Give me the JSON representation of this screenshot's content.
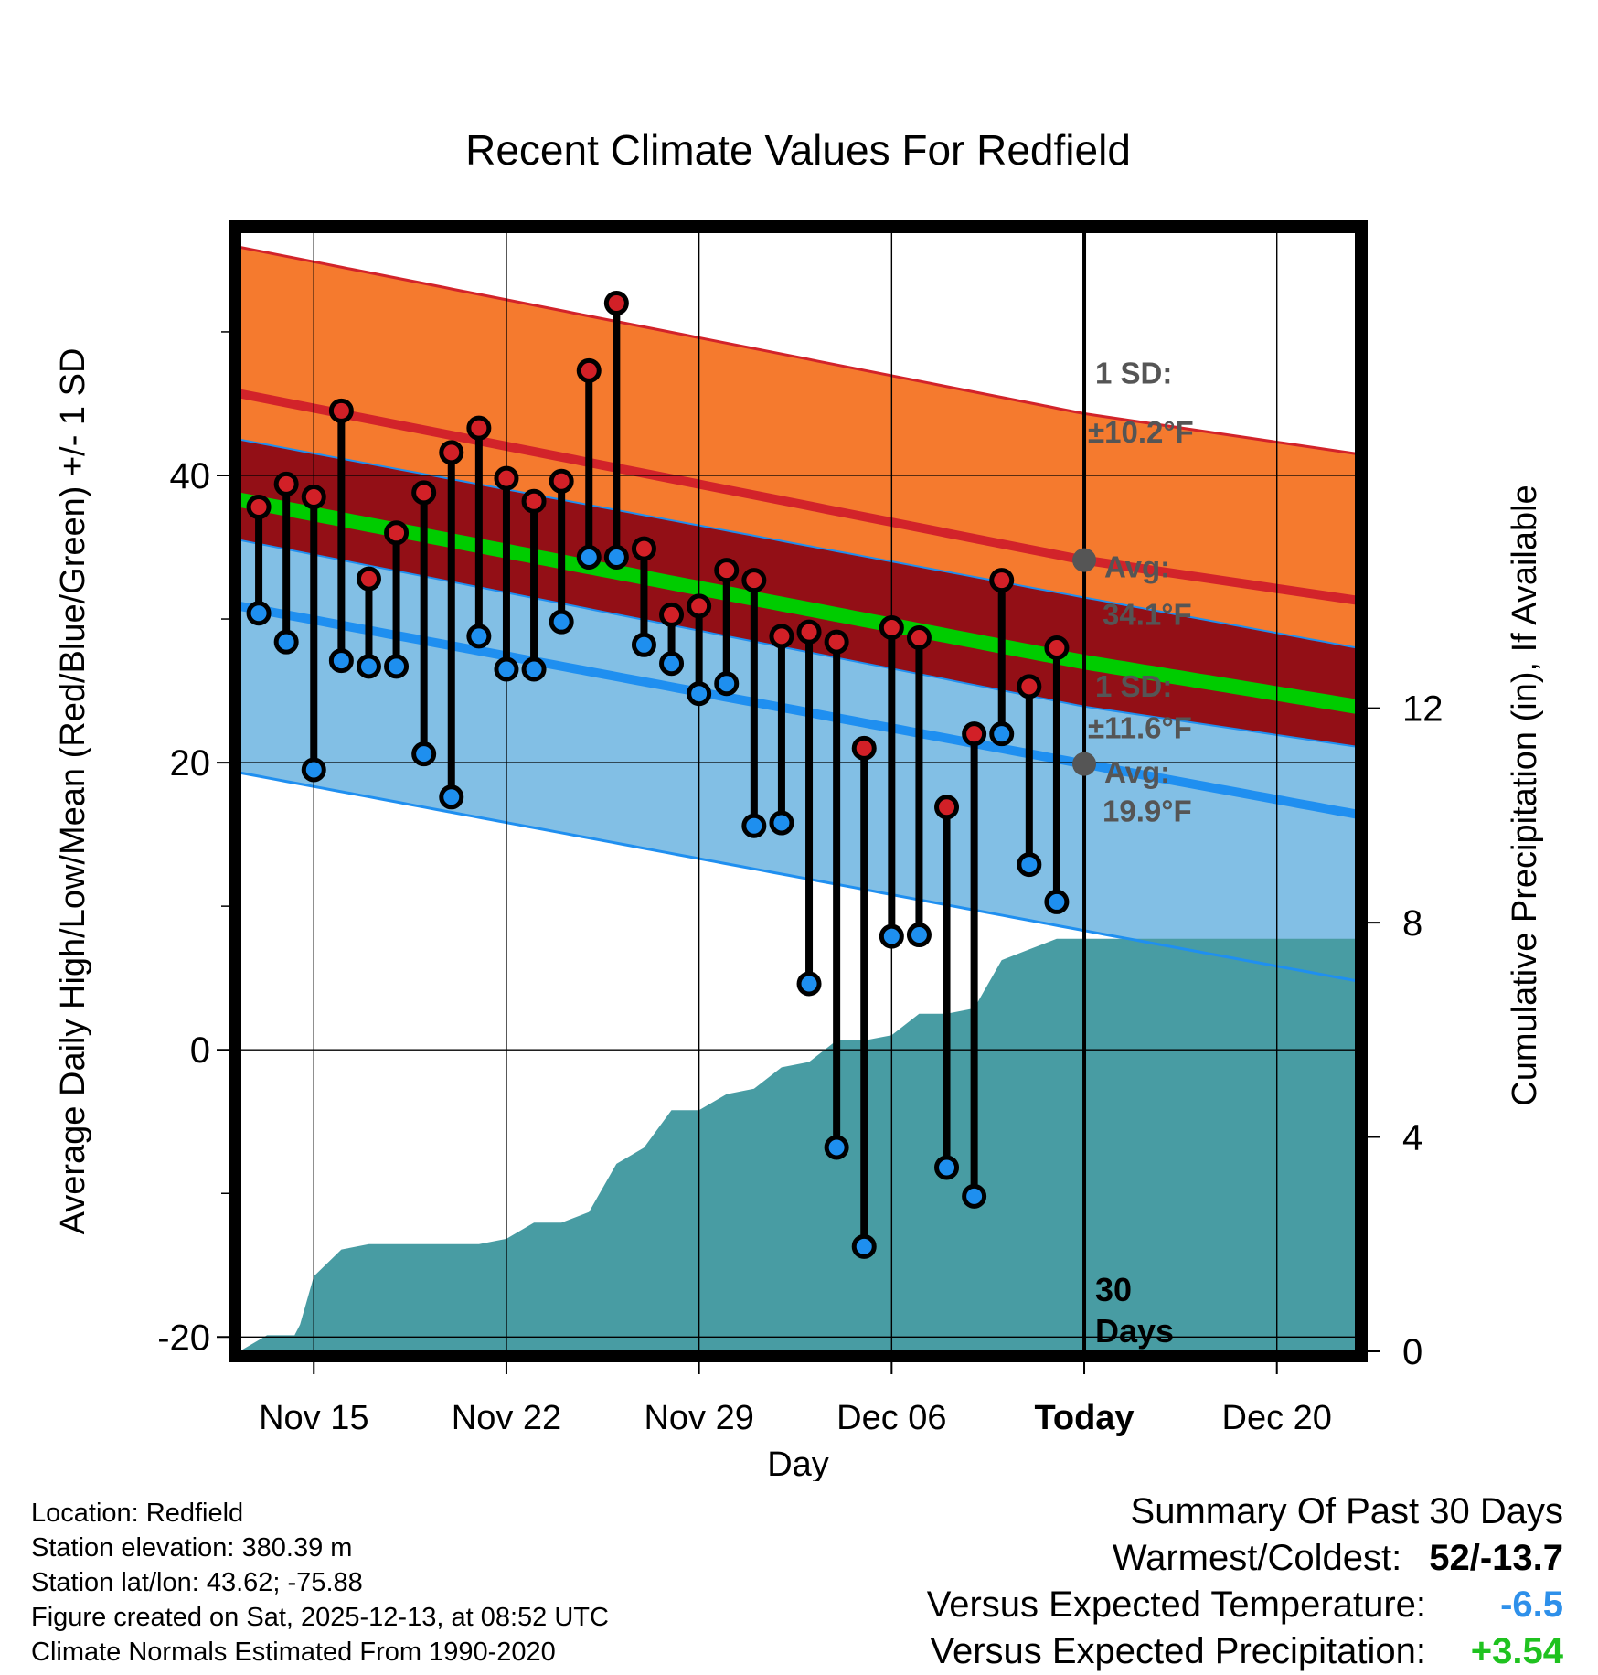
{
  "chart_data": {
    "type": "line",
    "title": "Recent Climate Values For Redfield",
    "xlabel": "Day",
    "ylabel": "Average Daily High/Low/Mean (Red/Blue/Green) +/- 1 SD",
    "y2label": "Cumulative Precipitation (in), If Available",
    "ylim": [
      -21,
      57
    ],
    "y2lim": [
      0,
      20.9
    ],
    "yticks": [
      "-20",
      "0",
      "20",
      "40"
    ],
    "y2ticks": [
      "0",
      "4",
      "8",
      "12"
    ],
    "xticks": [
      "Nov 15",
      "Nov 22",
      "Nov 29",
      "Dec 06",
      "Today",
      "Dec 20"
    ],
    "xtick_days": [
      15,
      22,
      29,
      36,
      43,
      50
    ],
    "xlim": [
      12.3,
      52.9
    ],
    "today_day": 43,
    "days_label": "30 Days",
    "days": [
      13,
      14,
      15,
      16,
      17,
      18,
      19,
      20,
      21,
      22,
      23,
      24,
      25,
      26,
      27,
      28,
      29,
      30,
      31,
      32,
      33,
      34,
      35,
      36,
      37,
      38,
      39,
      40,
      41,
      42
    ],
    "highs": [
      37.8,
      39.4,
      38.5,
      44.5,
      32.8,
      36.0,
      38.8,
      41.6,
      43.3,
      39.8,
      38.2,
      39.6,
      47.3,
      52.0,
      34.9,
      30.3,
      30.9,
      33.4,
      32.7,
      28.8,
      29.1,
      28.4,
      21.0,
      29.4,
      28.7,
      16.9,
      22.0,
      32.7,
      25.3,
      28.0
    ],
    "lows": [
      30.4,
      28.4,
      19.5,
      27.1,
      26.7,
      26.7,
      20.6,
      17.6,
      28.8,
      26.5,
      26.5,
      29.8,
      34.3,
      34.3,
      28.2,
      26.9,
      24.8,
      25.5,
      15.6,
      15.8,
      4.6,
      -6.8,
      -13.7,
      7.9,
      8.0,
      -8.2,
      -10.2,
      22.0,
      12.9,
      10.3
    ],
    "normals": {
      "days": [
        12.3,
        43,
        52.9
      ],
      "high_mean": [
        45.7,
        34.1,
        31.3
      ],
      "high_sd": 10.2,
      "low_mean": [
        30.9,
        19.9,
        16.4
      ],
      "low_sd": 11.6,
      "mean": [
        38.3,
        27.0,
        23.9
      ]
    },
    "precip": {
      "days": [
        12.3,
        13.3,
        14.3,
        14.5,
        15,
        16,
        17,
        18,
        19,
        20,
        21,
        22,
        23,
        24,
        25,
        26,
        27,
        28,
        29,
        30,
        31,
        32,
        33,
        34,
        35,
        36,
        37,
        38,
        39,
        40,
        41,
        42,
        52.9
      ],
      "values": [
        0.0,
        0.3,
        0.3,
        0.5,
        1.4,
        1.9,
        2.0,
        2.0,
        2.0,
        2.0,
        2.0,
        2.1,
        2.4,
        2.4,
        2.6,
        3.5,
        3.8,
        4.5,
        4.5,
        4.8,
        4.9,
        5.3,
        5.4,
        5.8,
        5.8,
        5.9,
        6.3,
        6.3,
        6.4,
        7.3,
        7.5,
        7.7,
        7.7
      ]
    },
    "annotations": {
      "high_sd_title": "1 SD:",
      "high_sd_value": "±10.2°F",
      "high_avg_title": "Avg:",
      "high_avg_value": "34.1°F",
      "low_sd_title": "1 SD:",
      "low_sd_value": "±11.6°F",
      "low_avg_title": "Avg:",
      "low_avg_value": "19.9°F"
    },
    "colors": {
      "high_band": "#f57a2e",
      "high_line": "#d2232a",
      "overlap_band": "#930f16",
      "low_band": "#82bfe5",
      "low_line": "#1f8ff0",
      "mean_line": "#00cc00",
      "precip": "#489ca3",
      "high_marker": "#d22027",
      "low_marker": "#1e8fef",
      "annotation": "#555555"
    }
  },
  "info": {
    "location": "Location: Redfield",
    "elevation": "Station elevation: 380.39 m",
    "latlon": "Station lat/lon: 43.62; -75.88",
    "created": "Figure created on Sat, 2025-12-13, at 08:52 UTC",
    "normals": "Climate Normals Estimated From 1990-2020"
  },
  "summary": {
    "title": "Summary Of Past 30 Days",
    "warm_cold_label": "Warmest/Coldest:",
    "warm_cold_value": "52/-13.7",
    "temp_label": "Versus Expected Temperature:",
    "temp_value": "-6.5",
    "precip_label": "Versus Expected Precipitation:",
    "precip_value": "+3.54"
  }
}
